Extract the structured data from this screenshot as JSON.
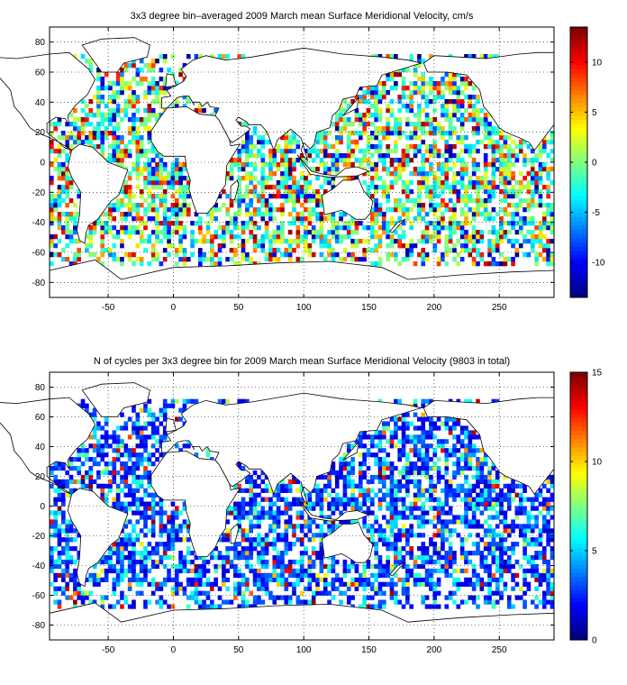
{
  "chart_data": [
    {
      "type": "heatmap",
      "title": "3x3 degree bin–averaged 2009 March mean Surface Meridional Velocity, cm/s",
      "xlabel": "",
      "ylabel": "",
      "xlim": [
        -95,
        292
      ],
      "ylim": [
        -90,
        90
      ],
      "x_ticks": [
        "-50",
        "0",
        "50",
        "100",
        "150",
        "200",
        "250"
      ],
      "x_tick_values": [
        -50,
        0,
        50,
        100,
        150,
        200,
        250
      ],
      "y_ticks": [
        "80",
        "60",
        "40",
        "20",
        "0",
        "-20",
        "-40",
        "-60",
        "-80"
      ],
      "y_tick_values": [
        80,
        60,
        40,
        20,
        0,
        -20,
        -40,
        -60,
        -80
      ],
      "bin_size_deg": 3,
      "grid": true,
      "colorbar": {
        "colormap": "jet",
        "range": [
          -13.5,
          13.5
        ],
        "tick_labels": [
          "10",
          "5",
          "0",
          "-5",
          "-10"
        ],
        "tick_values": [
          10,
          5,
          0,
          -5,
          -10
        ],
        "placement": "right"
      },
      "values_note": ""
    },
    {
      "type": "heatmap",
      "title": "N of cycles per 3x3 degree bin for 2009 March mean Surface Meridional Velocity (9803 in total)",
      "xlabel": "",
      "ylabel": "",
      "xlim": [
        -95,
        292
      ],
      "ylim": [
        -90,
        90
      ],
      "x_ticks": [
        "-50",
        "0",
        "50",
        "100",
        "150",
        "200",
        "250"
      ],
      "x_tick_values": [
        -50,
        0,
        50,
        100,
        150,
        200,
        250
      ],
      "y_ticks": [
        "80",
        "60",
        "40",
        "20",
        "0",
        "-20",
        "-40",
        "-60",
        "-80"
      ],
      "y_tick_values": [
        80,
        60,
        40,
        20,
        0,
        -20,
        -40,
        -60,
        -80
      ],
      "bin_size_deg": 3,
      "total_count": 9803,
      "grid": true,
      "colorbar": {
        "colormap": "jet",
        "range": [
          0,
          15
        ],
        "tick_labels": [
          "15",
          "10",
          "5",
          "0"
        ],
        "tick_values": [
          15,
          10,
          5,
          0
        ],
        "placement": "right"
      }
    }
  ],
  "colors": {
    "frame": "#000000",
    "land_outline": "#000000",
    "background": "#ffffff"
  }
}
